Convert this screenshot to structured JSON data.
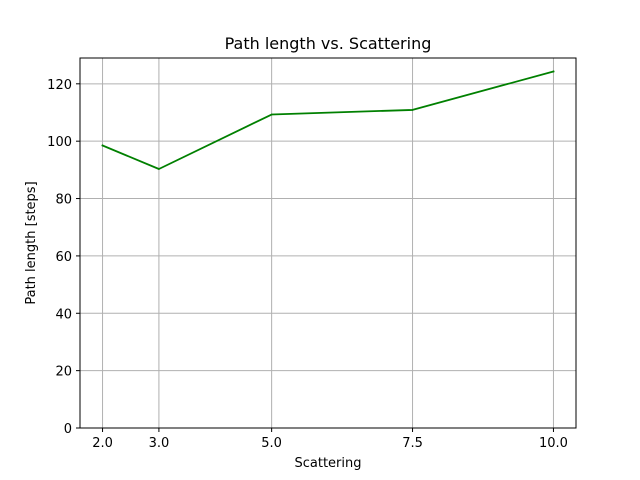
{
  "chart_data": {
    "type": "line",
    "title": "Path length vs. Scattering",
    "xlabel": "Scattering",
    "ylabel": "Path length [steps]",
    "x": [
      2.0,
      3.0,
      5.0,
      7.5,
      10.0
    ],
    "x_tick_labels": [
      "2.0",
      "3.0",
      "5.0",
      "7.5",
      "10.0"
    ],
    "series": [
      {
        "values": [
          98.5,
          90.3,
          109.3,
          110.9,
          124.3
        ],
        "color": "#008000"
      }
    ],
    "y_ticks": [
      0,
      20,
      40,
      60,
      80,
      100,
      120
    ],
    "y_tick_labels": [
      "0",
      "20",
      "40",
      "60",
      "80",
      "100",
      "120"
    ],
    "xlim": [
      1.6,
      10.4
    ],
    "ylim": [
      0,
      129
    ],
    "grid": true,
    "grid_color": "#b0b0b0"
  }
}
